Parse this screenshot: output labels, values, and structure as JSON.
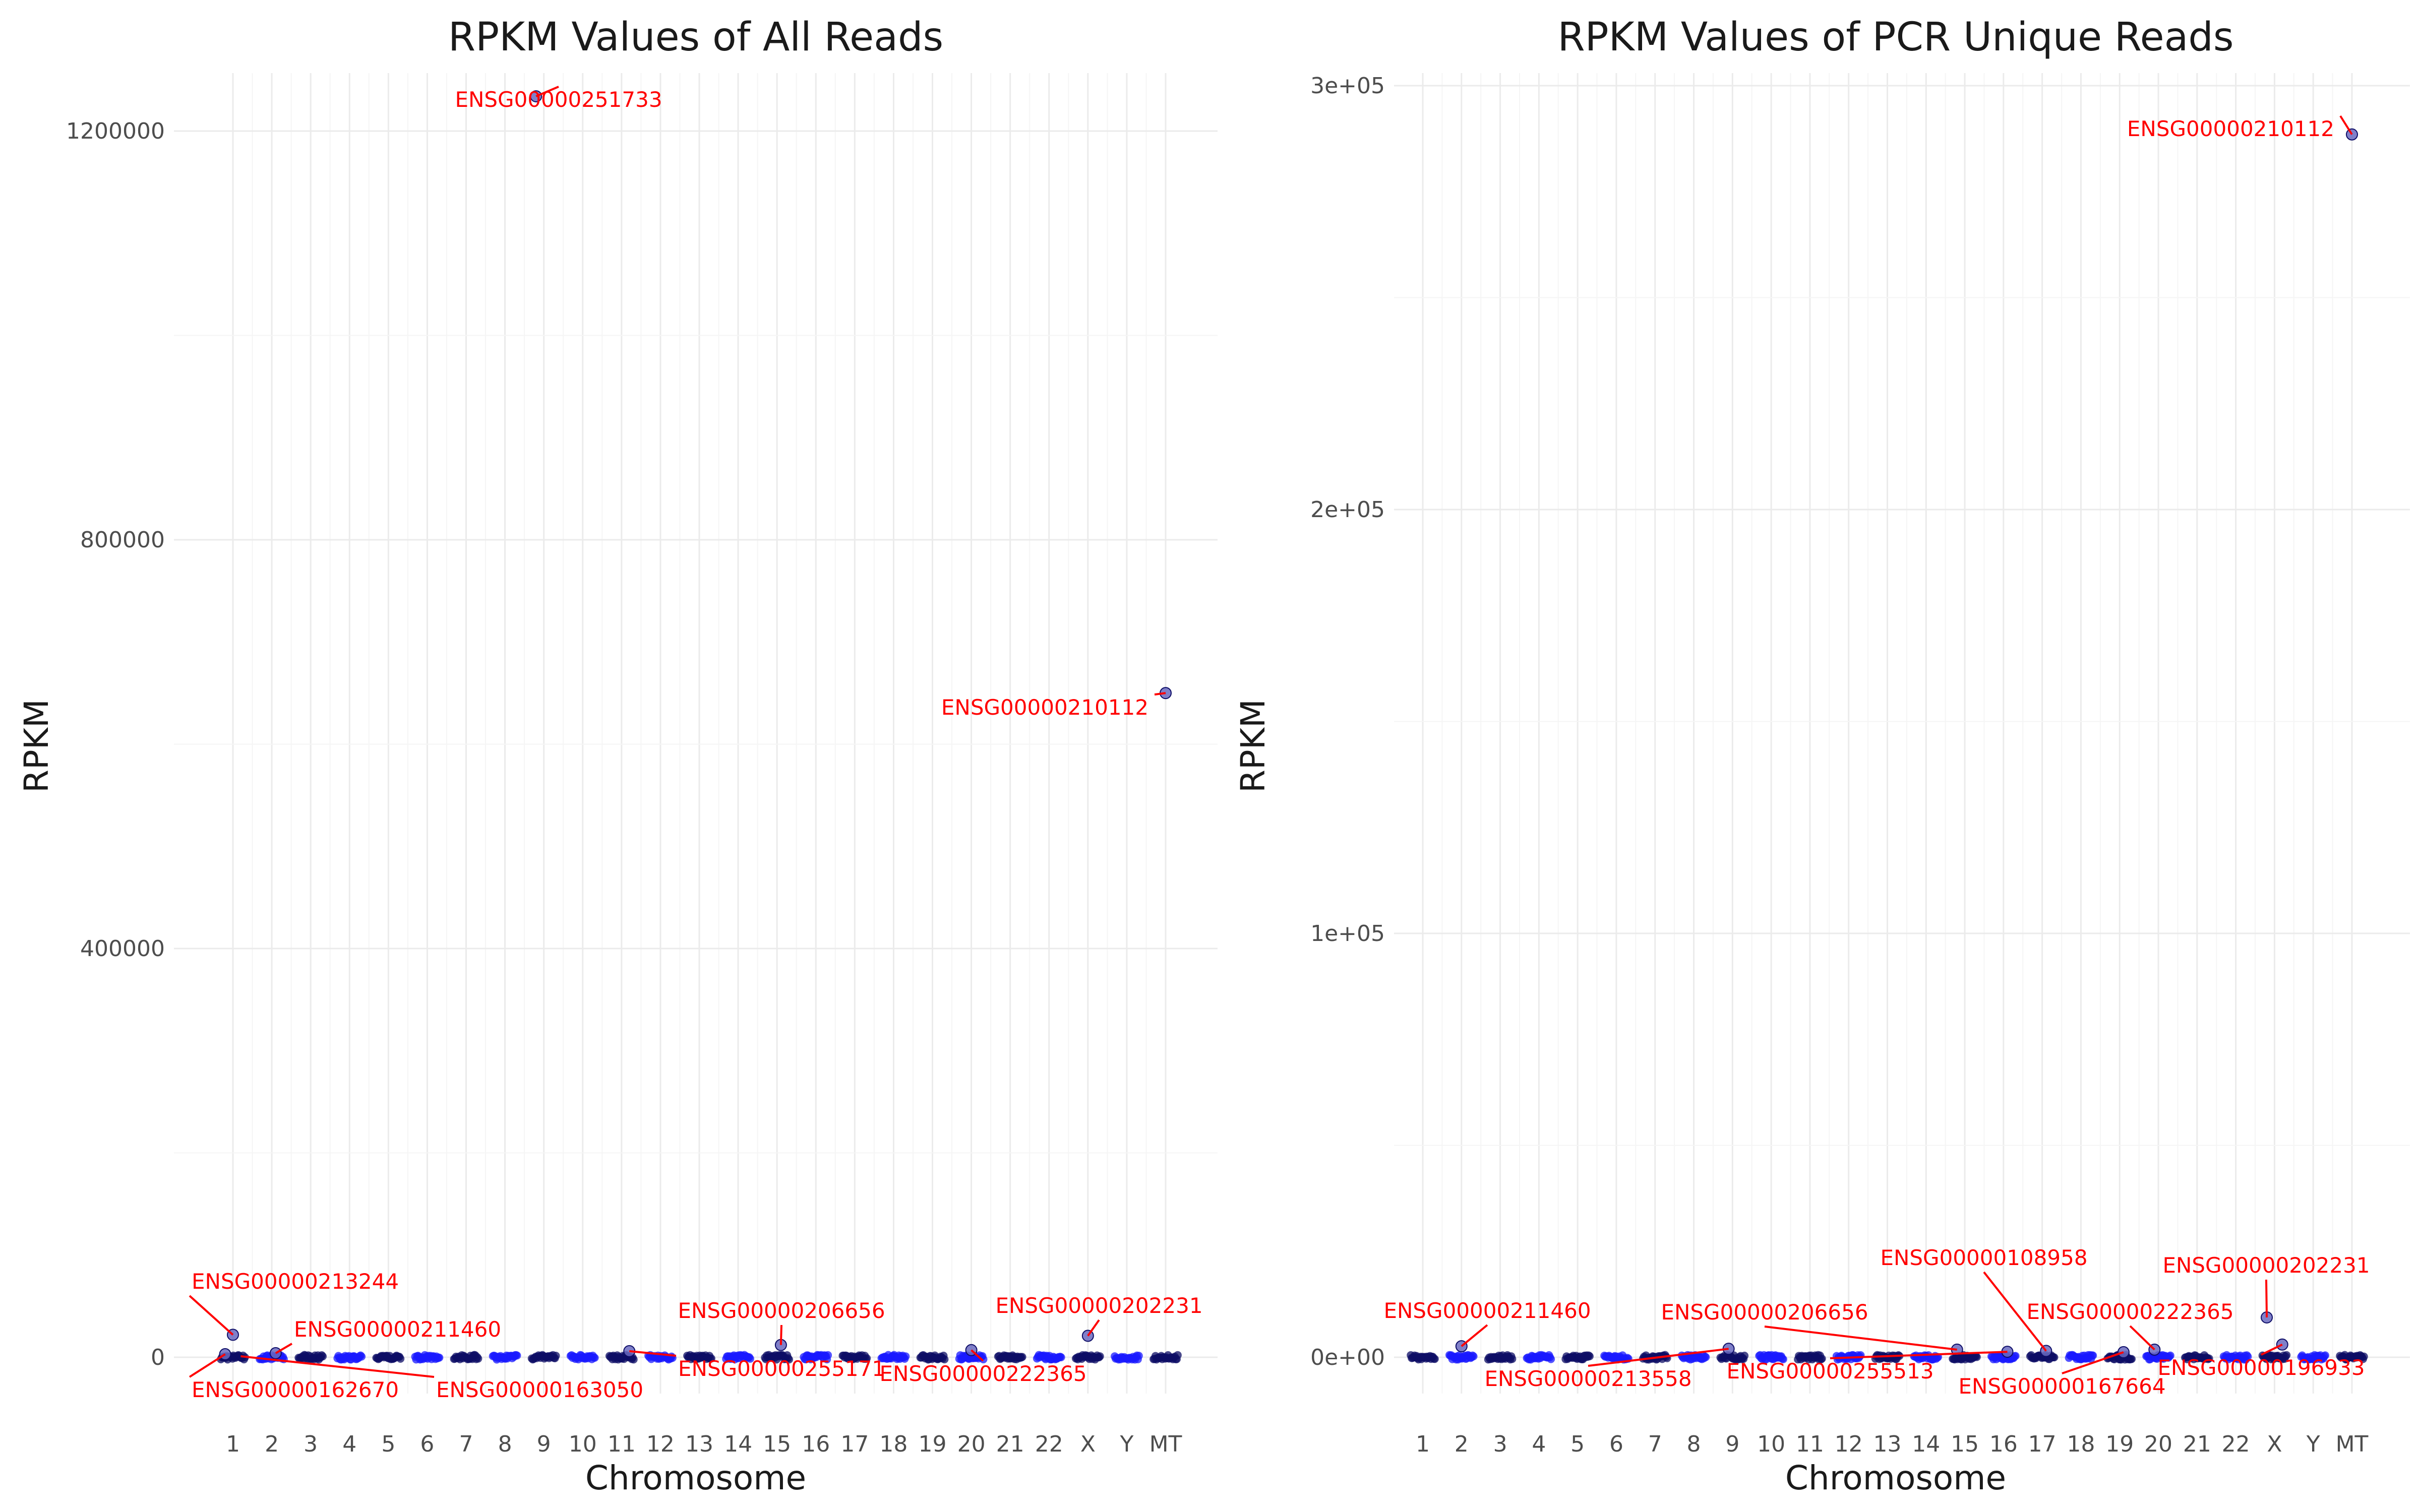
{
  "chart_data": [
    {
      "type": "scatter",
      "title": "RPKM Values of All Reads",
      "xlabel": "Chromosome",
      "ylabel": "RPKM",
      "categories": [
        "1",
        "2",
        "3",
        "4",
        "5",
        "6",
        "7",
        "8",
        "9",
        "10",
        "11",
        "12",
        "13",
        "14",
        "15",
        "16",
        "17",
        "18",
        "19",
        "20",
        "21",
        "22",
        "X",
        "Y",
        "MT"
      ],
      "ylim": [
        -40000,
        1300000
      ],
      "yticks": [
        0,
        400000,
        800000,
        1200000
      ],
      "ytick_labels": [
        "0",
        "400000",
        "800000",
        "1200000"
      ],
      "grid": true,
      "series": [
        {
          "points": [
            {
              "chrom": "9",
              "x": 8.8,
              "y": 1234000
            },
            {
              "chrom": "MT",
              "x": 25.0,
              "y": 650000
            },
            {
              "chrom": "1",
              "x": 1.0,
              "y": 22000
            },
            {
              "chrom": "X",
              "x": 23.0,
              "y": 21000
            },
            {
              "chrom": "15",
              "x": 15.1,
              "y": 12000
            },
            {
              "chrom": "2",
              "x": 2.1,
              "y": 4000
            },
            {
              "chrom": "11",
              "x": 11.2,
              "y": 6000
            },
            {
              "chrom": "20",
              "x": 20.0,
              "y": 7000
            },
            {
              "chrom": "1",
              "x": 0.8,
              "y": 3000
            }
          ]
        }
      ],
      "annotations": [
        {
          "label": "ENSG00000251733",
          "x": 8.8,
          "y": 1234000
        },
        {
          "label": "ENSG00000210112",
          "x": 25.0,
          "y": 650000
        },
        {
          "label": "ENSG00000213244",
          "x": 1.0,
          "y": 22000
        },
        {
          "label": "ENSG00000211460",
          "x": 2.1,
          "y": 4000
        },
        {
          "label": "ENSG00000162670",
          "x": 0.8,
          "y": 3000
        },
        {
          "label": "ENSG00000163050",
          "x": 1.2,
          "y": 1000
        },
        {
          "label": "ENSG00000255171",
          "x": 11.2,
          "y": 6000
        },
        {
          "label": "ENSG00000206656",
          "x": 15.1,
          "y": 12000
        },
        {
          "label": "ENSG00000222365",
          "x": 20.0,
          "y": 7000
        },
        {
          "label": "ENSG00000202231",
          "x": 23.0,
          "y": 21000
        }
      ]
    },
    {
      "type": "scatter",
      "title": "RPKM Values of PCR Unique Reads",
      "xlabel": "Chromosome",
      "ylabel": "RPKM",
      "categories": [
        "1",
        "2",
        "3",
        "4",
        "5",
        "6",
        "7",
        "8",
        "9",
        "10",
        "11",
        "12",
        "13",
        "14",
        "15",
        "16",
        "17",
        "18",
        "19",
        "20",
        "21",
        "22",
        "X",
        "Y",
        "MT"
      ],
      "ylim": [
        -10000,
        302000
      ],
      "yticks": [
        0,
        100000,
        200000,
        300000
      ],
      "ytick_labels": [
        "0e+00",
        "1e+05",
        "2e+05",
        "3e+05"
      ],
      "grid": true,
      "series": [
        {
          "points": [
            {
              "chrom": "MT",
              "x": 25.0,
              "y": 288500
            },
            {
              "chrom": "X",
              "x": 22.8,
              "y": 9400
            },
            {
              "chrom": "2",
              "x": 2.0,
              "y": 2600
            },
            {
              "chrom": "X",
              "x": 23.2,
              "y": 3000
            },
            {
              "chrom": "9",
              "x": 8.9,
              "y": 2000
            },
            {
              "chrom": "14",
              "x": 14.8,
              "y": 1800
            },
            {
              "chrom": "17",
              "x": 17.1,
              "y": 1500
            },
            {
              "chrom": "19",
              "x": 19.1,
              "y": 1200
            },
            {
              "chrom": "20",
              "x": 19.9,
              "y": 1800
            },
            {
              "chrom": "16",
              "x": 16.1,
              "y": 1300
            }
          ]
        }
      ],
      "annotations": [
        {
          "label": "ENSG00000210112",
          "x": 25.0,
          "y": 288500
        },
        {
          "label": "ENSG00000202231",
          "x": 22.8,
          "y": 9400
        },
        {
          "label": "ENSG00000211460",
          "x": 2.0,
          "y": 2600
        },
        {
          "label": "ENSG00000206656",
          "x": 14.8,
          "y": 1800
        },
        {
          "label": "ENSG00000108958",
          "x": 17.1,
          "y": 1500
        },
        {
          "label": "ENSG00000222365",
          "x": 19.9,
          "y": 1800
        },
        {
          "label": "ENSG00000213558",
          "x": 8.9,
          "y": 2000
        },
        {
          "label": "ENSG00000255513",
          "x": 16.1,
          "y": 1300
        },
        {
          "label": "ENSG00000167664",
          "x": 19.1,
          "y": 1200
        },
        {
          "label": "ENSG00000196933",
          "x": 23.2,
          "y": 3000
        }
      ]
    }
  ],
  "colors": {
    "dark_points": "#0d0d66",
    "light_points": "#1a1aff",
    "highlight_fill": "#6a6abf",
    "annotation": "#ff0000",
    "grid_major": "#ebebeb",
    "grid_minor": "#f5f5f5"
  }
}
